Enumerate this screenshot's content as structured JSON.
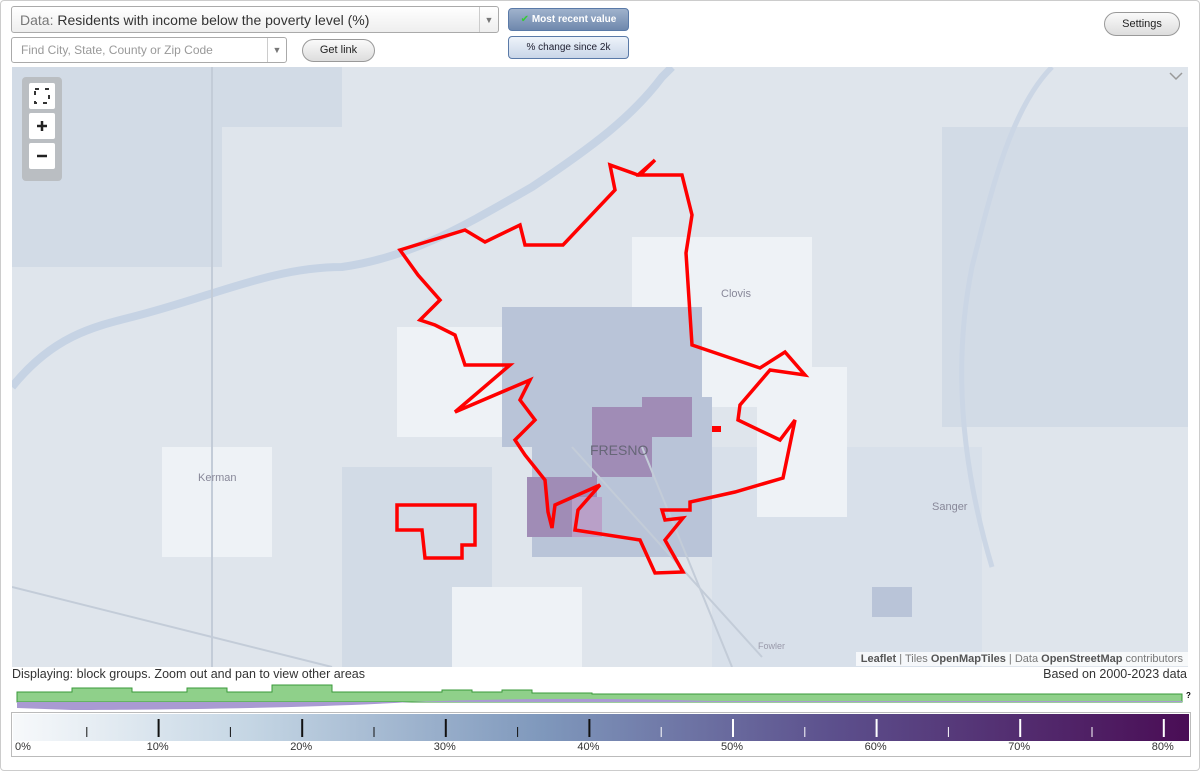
{
  "toolbar": {
    "data_label": "Data:",
    "data_value": "Residents with income below the poverty level (%)",
    "search_placeholder": "Find City, State, County or Zip Code",
    "get_link": "Get link",
    "most_recent": "Most recent value",
    "percent_change": "% change since 2k",
    "settings": "Settings"
  },
  "map": {
    "labels": [
      "FRESNO",
      "Clovis",
      "Kerman",
      "Sanger",
      "Fowler"
    ],
    "attribution": {
      "leaflet": "Leaflet",
      "tiles_prefix": "Tiles",
      "tiles": "OpenMapTiles",
      "data_prefix": "Data",
      "data": "OpenStreetMap",
      "suffix": "contributors"
    }
  },
  "status": {
    "displaying": "Displaying: block groups. Zoom out and pan to view other areas",
    "based_on": "Based on 2000-2023 data"
  },
  "legend": {
    "ticks": [
      "0%",
      "10%",
      "20%",
      "30%",
      "40%",
      "50%",
      "60%",
      "70%",
      "80%"
    ],
    "help": "?"
  }
}
